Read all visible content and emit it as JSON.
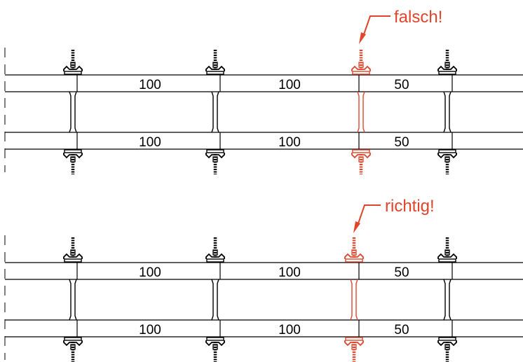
{
  "colors": {
    "line": "#000000",
    "accent": "#e0452b"
  },
  "top_panel": {
    "callout": "falsch!",
    "upper_dims": [
      "100",
      "100",
      "50"
    ],
    "lower_dims": [
      "100",
      "100",
      "50"
    ]
  },
  "bottom_panel": {
    "callout": "richtig!",
    "upper_dims": [
      "100",
      "100",
      "50"
    ],
    "lower_dims": [
      "100",
      "100",
      "50"
    ]
  }
}
